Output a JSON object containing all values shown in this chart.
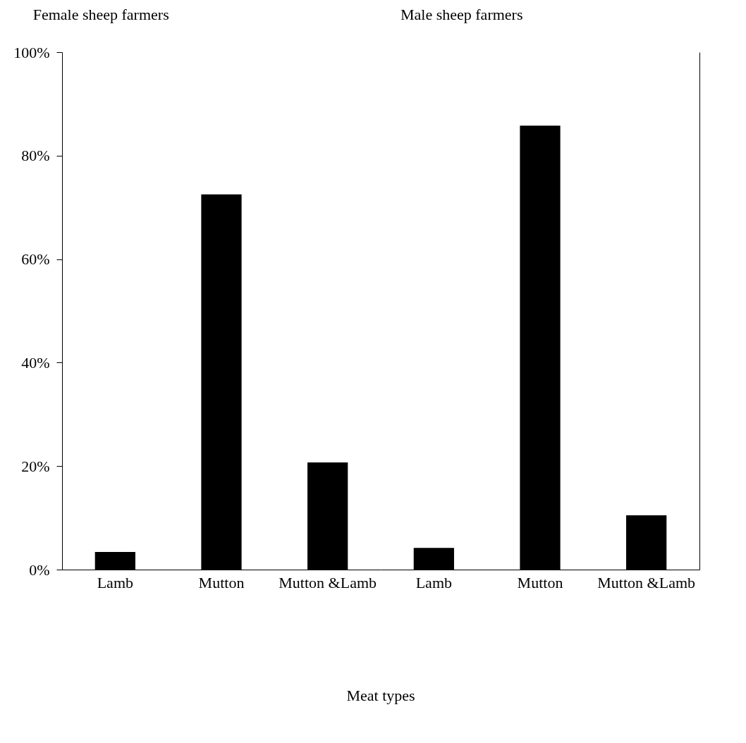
{
  "chart_data": [
    {
      "type": "bar",
      "title": "Female sheep farmers",
      "xlabel": "Meat types",
      "categories": [
        "Lamb",
        "Mutton",
        "Mutton &Lamb"
      ],
      "values": [
        3.4,
        72.5,
        20.7
      ],
      "color": "#000000",
      "ylim": [
        0,
        100
      ],
      "yticks": [
        {
          "value": 0,
          "label": "0%"
        },
        {
          "value": 20,
          "label": "20%"
        },
        {
          "value": 40,
          "label": "40%"
        },
        {
          "value": 60,
          "label": "60%"
        },
        {
          "value": 80,
          "label": "80%"
        },
        {
          "value": 100,
          "label": "100%"
        }
      ],
      "grid": false
    },
    {
      "type": "bar",
      "title": "Male sheep farmers",
      "categories": [
        "Lamb",
        "Mutton",
        "Mutton &Lamb"
      ],
      "values": [
        4.2,
        85.8,
        10.5
      ],
      "color": "#000000",
      "ylim": [
        0,
        100
      ],
      "grid": false,
      "tick_labels": "x"
    }
  ]
}
